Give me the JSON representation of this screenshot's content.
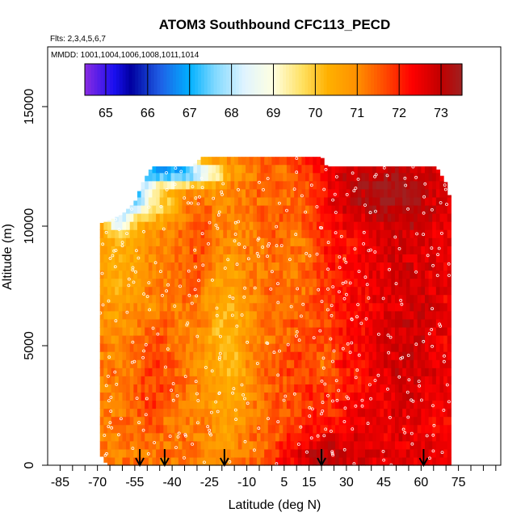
{
  "chart_data": {
    "type": "heatmap",
    "title": "ATOM3 Southbound CFC113_PECD",
    "flights_label": "Flts: 2,3,4,5,6,7",
    "mmdd_label": "MMDD: 1001,1004,1006,1008,1011,1014",
    "xlabel": "Latitude (deg N)",
    "ylabel": "Altitude (m)",
    "xlim": [
      -90,
      92
    ],
    "ylim": [
      0,
      17500
    ],
    "xticks": [
      -85,
      -70,
      -55,
      -40,
      -25,
      -10,
      5,
      15,
      30,
      45,
      60,
      75
    ],
    "xticks_minor": [
      -80,
      -75,
      -65,
      -60,
      -50,
      -45,
      -35,
      -30,
      -20,
      -15,
      -5,
      0,
      10,
      20,
      25,
      35,
      40,
      50,
      55,
      65,
      70,
      80,
      85,
      90
    ],
    "yticks": [
      0,
      5000,
      10000,
      15000
    ],
    "colorbar": {
      "range": [
        64.5,
        73.5
      ],
      "ticks": [
        65,
        66,
        67,
        68,
        69,
        70,
        71,
        72,
        73
      ],
      "stops": [
        {
          "v": 64.5,
          "c": "#8a2be2"
        },
        {
          "v": 65.2,
          "c": "#1a0ff0"
        },
        {
          "v": 65.6,
          "c": "#0000a0"
        },
        {
          "v": 66.3,
          "c": "#1f5fe6"
        },
        {
          "v": 67.0,
          "c": "#00b0ff"
        },
        {
          "v": 67.6,
          "c": "#7fd8ff"
        },
        {
          "v": 68.3,
          "c": "#e0f4ff"
        },
        {
          "v": 69.0,
          "c": "#ffffe0"
        },
        {
          "v": 69.7,
          "c": "#ffe060"
        },
        {
          "v": 70.3,
          "c": "#ffb000"
        },
        {
          "v": 71.0,
          "c": "#ff9000"
        },
        {
          "v": 71.6,
          "c": "#ff5000"
        },
        {
          "v": 72.3,
          "c": "#ff0000"
        },
        {
          "v": 73.0,
          "c": "#c00000"
        },
        {
          "v": 73.5,
          "c": "#a02020"
        }
      ]
    },
    "field": {
      "lat_range": [
        -69,
        72
      ],
      "alt_max": 12900,
      "cell_lat": 1.5,
      "cell_alt": 340,
      "top_envelope": [
        {
          "lat": -73,
          "alt": 10000
        },
        {
          "lat": -66,
          "alt": 10200
        },
        {
          "lat": -60,
          "alt": 10500
        },
        {
          "lat": -55,
          "alt": 11000
        },
        {
          "lat": -52,
          "alt": 11800
        },
        {
          "lat": -48,
          "alt": 12500
        },
        {
          "lat": -32,
          "alt": 12500
        },
        {
          "lat": -28,
          "alt": 12900
        },
        {
          "lat": 20,
          "alt": 12900
        },
        {
          "lat": 22,
          "alt": 12500
        },
        {
          "lat": 66,
          "alt": 12500
        },
        {
          "lat": 70,
          "alt": 11800
        },
        {
          "lat": 72,
          "alt": 11000
        }
      ],
      "bottom_envelope": [
        {
          "lat": -73,
          "alt": 5100
        },
        {
          "lat": -72,
          "alt": 3000
        },
        {
          "lat": -70,
          "alt": 1200
        },
        {
          "lat": -69,
          "alt": 500
        },
        {
          "lat": -66,
          "alt": 0
        }
      ],
      "features": [
        {
          "lat": -46,
          "alt": 12300,
          "rlat": 14,
          "ralt": 500,
          "dv": -3.8
        },
        {
          "lat": -30,
          "alt": 12200,
          "rlat": 12,
          "ralt": 500,
          "dv": -2.6
        },
        {
          "lat": -55,
          "alt": 11300,
          "rlat": 6,
          "ralt": 700,
          "dv": -3.5
        },
        {
          "lat": -62,
          "alt": 10400,
          "rlat": 6,
          "ralt": 700,
          "dv": -2.6
        },
        {
          "lat": -45,
          "alt": 10900,
          "rlat": 10,
          "ralt": 900,
          "dv": -1.2
        },
        {
          "lat": -60,
          "alt": 8200,
          "rlat": 10,
          "ralt": 2500,
          "dv": -0.8
        },
        {
          "lat": -18,
          "alt": 5000,
          "rlat": 10,
          "ralt": 4000,
          "dv": -1.0
        },
        {
          "lat": 12,
          "alt": 9000,
          "rlat": 8,
          "ralt": 3000,
          "dv": -0.6
        },
        {
          "lat": 22,
          "alt": 4500,
          "rlat": 6,
          "ralt": 2000,
          "dv": -0.6
        },
        {
          "lat": 45,
          "alt": 11500,
          "rlat": 22,
          "ralt": 1500,
          "dv": 1.0
        },
        {
          "lat": 55,
          "alt": 6000,
          "rlat": 15,
          "ralt": 5000,
          "dv": 0.6
        },
        {
          "lat": 20,
          "alt": 300,
          "rlat": 20,
          "ralt": 1000,
          "dv": 1.0
        },
        {
          "lat": -47,
          "alt": 3500,
          "rlat": 8,
          "ralt": 2000,
          "dv": 0.6
        },
        {
          "lat": -30,
          "alt": 9000,
          "rlat": 6,
          "ralt": 2500,
          "dv": 0.5
        }
      ]
    },
    "arrows_lat": [
      -53,
      -43,
      -19,
      20,
      61
    ]
  }
}
